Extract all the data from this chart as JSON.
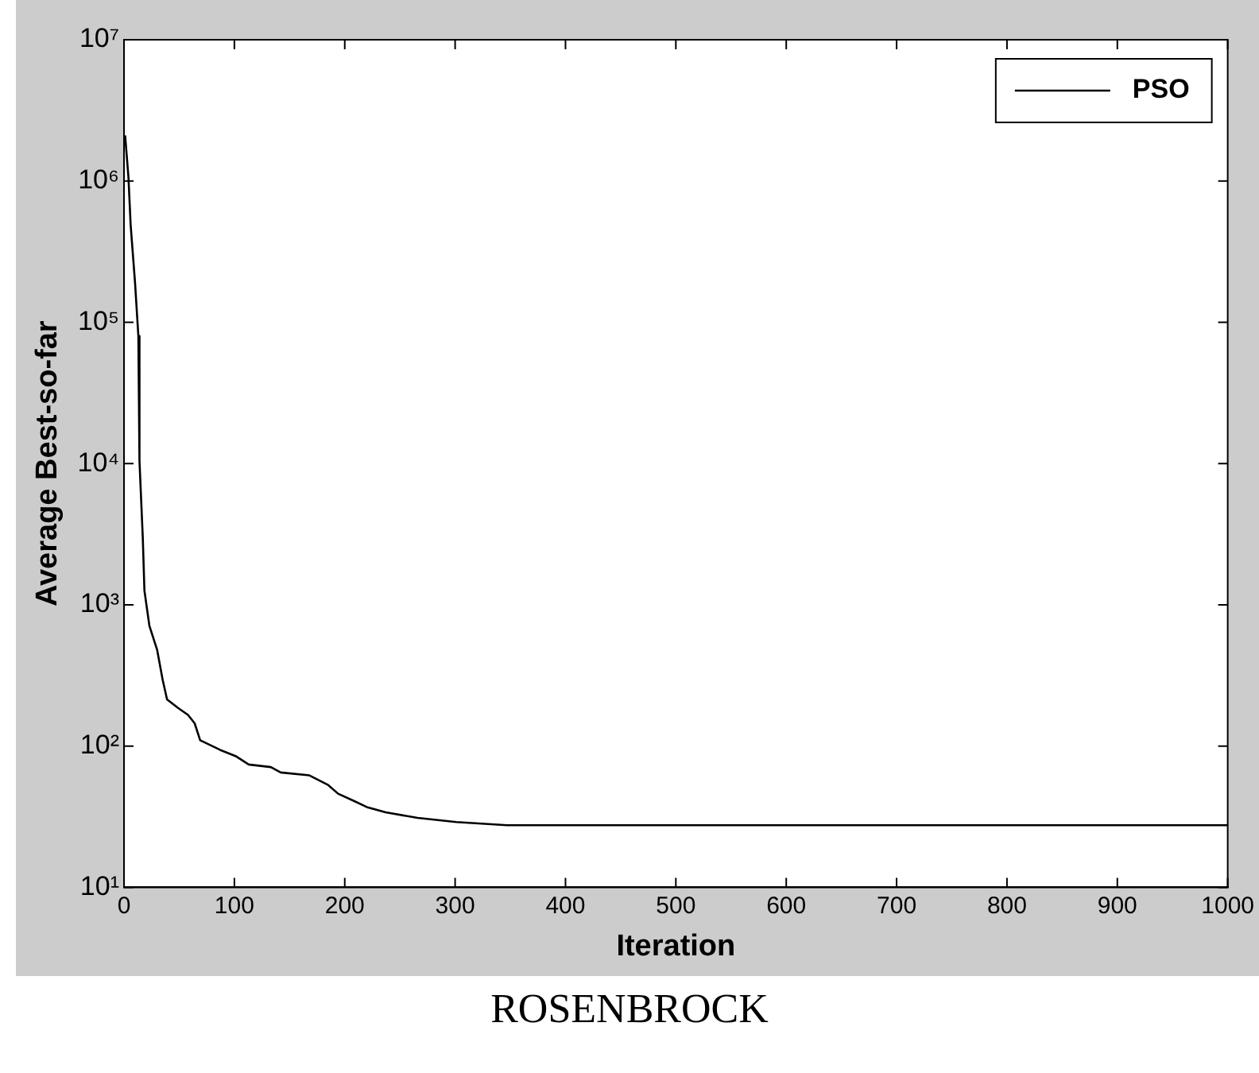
{
  "chart_data": {
    "type": "line",
    "xlabel": "Iteration",
    "ylabel": "Average Best-so-far",
    "annotations": [
      "ROSENBROCK"
    ],
    "x": [
      1,
      4,
      6,
      10,
      13,
      14,
      17,
      18.5,
      23,
      30,
      35,
      39,
      49,
      58,
      64,
      69,
      87,
      101,
      113,
      133,
      142,
      168,
      185,
      194,
      208,
      220,
      237,
      266,
      301,
      347,
      1000
    ],
    "series": [
      {
        "name": "PSO",
        "color": "#000000",
        "values": [
          2100000,
          1070000,
          490000,
          190000,
          80000,
          10500,
          3000,
          1260,
          710,
          480,
          295,
          214,
          186,
          166,
          145,
          110,
          94,
          85,
          74,
          71,
          65,
          62,
          53,
          46,
          41,
          37,
          34,
          31,
          29,
          27.5,
          27.5
        ]
      }
    ],
    "log": "y",
    "grid": false,
    "legend": "top right",
    "marker": "none",
    "line_style": "solid",
    "xlim": [
      0,
      1000
    ],
    "xticks": [
      0,
      100,
      200,
      300,
      400,
      500,
      600,
      700,
      800,
      900,
      1000
    ],
    "ylim": [
      10,
      10000000
    ],
    "yticks": [
      {
        "value": 10,
        "label": "10¹"
      },
      {
        "value": 100,
        "label": "10²"
      },
      {
        "value": 1000,
        "label": "10³"
      },
      {
        "value": 10000,
        "label": "10⁴"
      },
      {
        "value": 100000,
        "label": "10⁵"
      },
      {
        "value": 1000000,
        "label": "10⁶"
      },
      {
        "value": 10000000,
        "label": "10⁷"
      }
    ]
  }
}
